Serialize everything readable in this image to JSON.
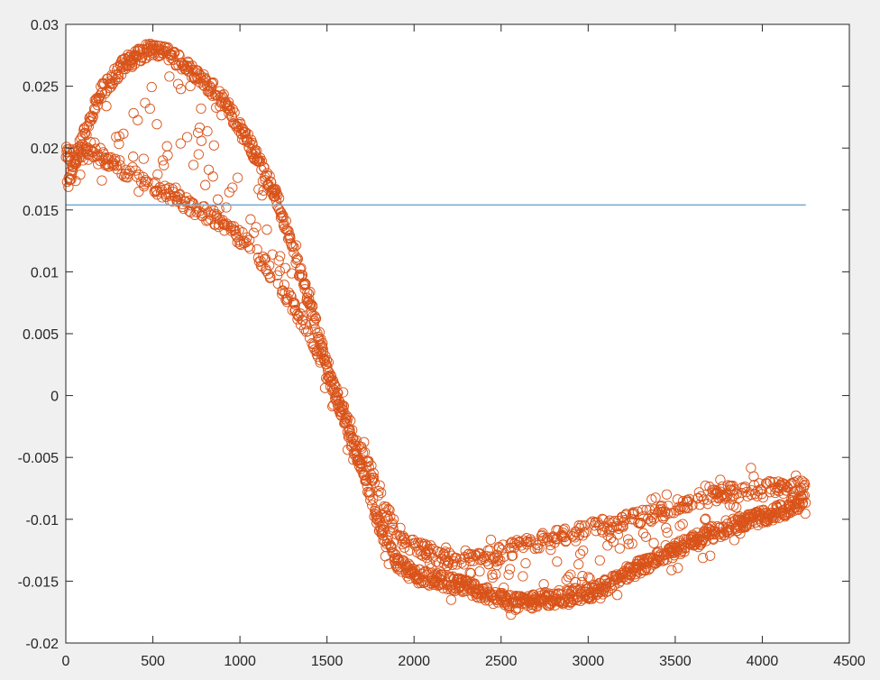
{
  "figure": {
    "background": "#f0f0f0",
    "axes_background": "#ffffff",
    "axes_color": "#262626"
  },
  "chart_data": {
    "type": "scatter",
    "xlim": [
      0,
      4500
    ],
    "ylim": [
      -0.02,
      0.03
    ],
    "xticks": [
      0,
      500,
      1000,
      1500,
      2000,
      2500,
      3000,
      3500,
      4000,
      4500
    ],
    "xtick_labels": [
      "0",
      "500",
      "1000",
      "1500",
      "2000",
      "2500",
      "3000",
      "3500",
      "4000",
      "4500"
    ],
    "yticks": [
      -0.02,
      -0.015,
      -0.01,
      -0.005,
      0,
      0.005,
      0.01,
      0.015,
      0.02,
      0.025,
      0.03
    ],
    "ytick_labels": [
      "-0.02",
      "-0.015",
      "-0.01",
      "-0.005",
      "0",
      "0.005",
      "0.01",
      "0.015",
      "0.02",
      "0.025",
      "0.03"
    ],
    "grid": false,
    "box": true,
    "series": [
      {
        "type": "scatter",
        "marker": "circle-open",
        "color": "#d95319",
        "point_count": 4250,
        "x_range": [
          1,
          4250
        ],
        "core_path": [
          [
            0,
            0.0165
          ],
          [
            100,
            0.021
          ],
          [
            200,
            0.0245
          ],
          [
            350,
            0.027
          ],
          [
            480,
            0.028
          ],
          [
            600,
            0.0275
          ],
          [
            750,
            0.026
          ],
          [
            900,
            0.024
          ],
          [
            1050,
            0.0205
          ],
          [
            1200,
            0.0165
          ],
          [
            1300,
            0.012
          ],
          [
            1400,
            0.0075
          ],
          [
            1500,
            0.0025
          ],
          [
            1600,
            -0.002
          ],
          [
            1700,
            -0.006
          ],
          [
            1800,
            -0.0105
          ],
          [
            1900,
            -0.0135
          ],
          [
            2000,
            -0.0145
          ],
          [
            2150,
            -0.015
          ],
          [
            2300,
            -0.0155
          ],
          [
            2450,
            -0.0163
          ],
          [
            2600,
            -0.0168
          ],
          [
            2750,
            -0.0165
          ],
          [
            2900,
            -0.0162
          ],
          [
            3050,
            -0.0158
          ],
          [
            3200,
            -0.0145
          ],
          [
            3400,
            -0.0132
          ],
          [
            3600,
            -0.0118
          ],
          [
            3800,
            -0.0106
          ],
          [
            4000,
            -0.0098
          ],
          [
            4250,
            -0.0085
          ]
        ],
        "secondary_path": [
          [
            150,
            0.0195
          ],
          [
            300,
            0.0185
          ],
          [
            500,
            0.017
          ],
          [
            700,
            0.0155
          ],
          [
            900,
            0.014
          ],
          [
            1100,
            0.0115
          ],
          [
            1300,
            0.0075
          ],
          [
            1450,
            0.0035
          ],
          [
            1600,
            -0.0015
          ],
          [
            1750,
            -0.006
          ],
          [
            1850,
            -0.0095
          ],
          [
            1950,
            -0.012
          ],
          [
            2100,
            -0.0128
          ],
          [
            2250,
            -0.0135
          ],
          [
            2400,
            -0.0132
          ],
          [
            2600,
            -0.0122
          ],
          [
            2800,
            -0.0115
          ],
          [
            3000,
            -0.0108
          ],
          [
            3200,
            -0.0102
          ],
          [
            3400,
            -0.0095
          ],
          [
            3600,
            -0.0085
          ],
          [
            3800,
            -0.0078
          ],
          [
            4000,
            -0.0075
          ],
          [
            4250,
            -0.0072
          ]
        ]
      },
      {
        "type": "line",
        "color": "#77acd3",
        "x": [
          0,
          4250
        ],
        "y": [
          0.0154,
          0.0154
        ]
      }
    ]
  }
}
